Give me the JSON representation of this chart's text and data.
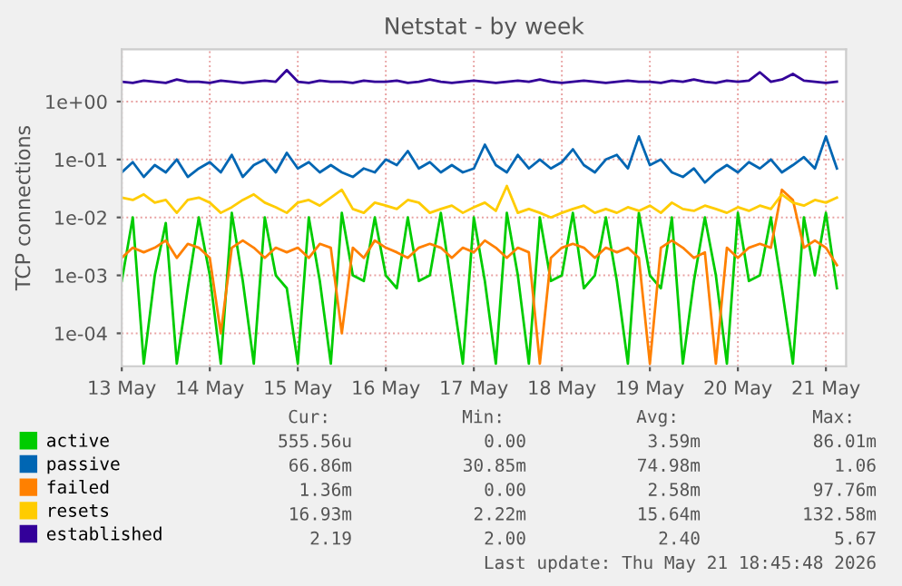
{
  "chart_data": {
    "type": "line",
    "title": "Netstat - by week",
    "ylabel": "TCP connections",
    "x": [
      "2026-05-13T00:00",
      "2026-05-13T03:00",
      "2026-05-13T06:00",
      "2026-05-13T09:00",
      "2026-05-13T12:00",
      "2026-05-13T15:00",
      "2026-05-13T18:00",
      "2026-05-13T21:00",
      "2026-05-14T00:00",
      "2026-05-14T03:00",
      "2026-05-14T06:00",
      "2026-05-14T09:00",
      "2026-05-14T12:00",
      "2026-05-14T15:00",
      "2026-05-14T18:00",
      "2026-05-14T21:00",
      "2026-05-15T00:00",
      "2026-05-15T03:00",
      "2026-05-15T06:00",
      "2026-05-15T09:00",
      "2026-05-15T12:00",
      "2026-05-15T15:00",
      "2026-05-15T18:00",
      "2026-05-15T21:00",
      "2026-05-16T00:00",
      "2026-05-16T03:00",
      "2026-05-16T06:00",
      "2026-05-16T09:00",
      "2026-05-16T12:00",
      "2026-05-16T15:00",
      "2026-05-16T18:00",
      "2026-05-16T21:00",
      "2026-05-17T00:00",
      "2026-05-17T03:00",
      "2026-05-17T06:00",
      "2026-05-17T09:00",
      "2026-05-17T12:00",
      "2026-05-17T15:00",
      "2026-05-17T18:00",
      "2026-05-17T21:00",
      "2026-05-18T00:00",
      "2026-05-18T03:00",
      "2026-05-18T06:00",
      "2026-05-18T09:00",
      "2026-05-18T12:00",
      "2026-05-18T15:00",
      "2026-05-18T18:00",
      "2026-05-18T21:00",
      "2026-05-19T00:00",
      "2026-05-19T03:00",
      "2026-05-19T06:00",
      "2026-05-19T09:00",
      "2026-05-19T12:00",
      "2026-05-19T15:00",
      "2026-05-19T18:00",
      "2026-05-19T21:00",
      "2026-05-20T00:00",
      "2026-05-20T03:00",
      "2026-05-20T06:00",
      "2026-05-20T09:00",
      "2026-05-20T12:00",
      "2026-05-20T15:00",
      "2026-05-20T18:00",
      "2026-05-20T21:00",
      "2026-05-21T00:00",
      "2026-05-21T03:00"
    ],
    "series": [
      {
        "name": "active",
        "color": "#00cc00",
        "values": [
          0.0008,
          0.01,
          3e-05,
          0.001,
          0.008,
          3e-05,
          0.0006,
          0.01,
          0.001,
          3e-05,
          0.012,
          0.0008,
          3e-05,
          0.01,
          0.001,
          0.0006,
          3e-05,
          0.01,
          0.0008,
          3e-05,
          0.012,
          0.001,
          0.0008,
          0.01,
          0.001,
          0.0006,
          0.01,
          0.0008,
          0.001,
          0.012,
          0.0006,
          3e-05,
          0.01,
          0.0008,
          3e-05,
          0.012,
          0.001,
          3e-05,
          0.01,
          0.0008,
          0.001,
          0.012,
          0.0006,
          0.001,
          0.01,
          0.0008,
          3e-05,
          0.012,
          0.001,
          0.0006,
          0.01,
          3e-05,
          0.0008,
          0.01,
          0.001,
          3e-05,
          0.012,
          0.0008,
          0.001,
          0.01,
          0.0006,
          3e-05,
          0.01,
          0.001,
          0.012,
          0.0006
        ]
      },
      {
        "name": "passive",
        "color": "#0066b3",
        "values": [
          0.06,
          0.09,
          0.05,
          0.08,
          0.06,
          0.1,
          0.05,
          0.07,
          0.09,
          0.06,
          0.12,
          0.05,
          0.08,
          0.1,
          0.06,
          0.13,
          0.07,
          0.09,
          0.06,
          0.08,
          0.06,
          0.05,
          0.07,
          0.06,
          0.1,
          0.08,
          0.14,
          0.07,
          0.09,
          0.06,
          0.08,
          0.06,
          0.07,
          0.18,
          0.08,
          0.06,
          0.12,
          0.07,
          0.1,
          0.07,
          0.09,
          0.15,
          0.08,
          0.06,
          0.1,
          0.12,
          0.07,
          0.25,
          0.08,
          0.1,
          0.06,
          0.05,
          0.07,
          0.04,
          0.06,
          0.08,
          0.06,
          0.09,
          0.07,
          0.1,
          0.06,
          0.08,
          0.11,
          0.07,
          0.25,
          0.07
        ]
      },
      {
        "name": "failed",
        "color": "#ff8000",
        "values": [
          0.002,
          0.003,
          0.0025,
          0.003,
          0.004,
          0.002,
          0.0035,
          0.003,
          0.002,
          0.0001,
          0.003,
          0.004,
          0.003,
          0.002,
          0.003,
          0.0025,
          0.003,
          0.002,
          0.0035,
          0.003,
          0.0001,
          0.003,
          0.002,
          0.004,
          0.003,
          0.0025,
          0.002,
          0.003,
          0.0035,
          0.003,
          0.002,
          0.003,
          0.0025,
          0.004,
          0.003,
          0.002,
          0.003,
          0.0025,
          3e-05,
          0.002,
          0.003,
          0.0035,
          0.003,
          0.002,
          0.003,
          0.0025,
          0.003,
          0.002,
          3e-05,
          0.003,
          0.004,
          0.003,
          0.002,
          0.0025,
          3e-05,
          0.003,
          0.002,
          0.003,
          0.0035,
          0.003,
          0.03,
          0.02,
          0.003,
          0.004,
          0.003,
          0.0015
        ]
      },
      {
        "name": "resets",
        "color": "#ffcc00",
        "values": [
          0.022,
          0.02,
          0.025,
          0.018,
          0.02,
          0.012,
          0.02,
          0.022,
          0.018,
          0.012,
          0.015,
          0.02,
          0.025,
          0.018,
          0.015,
          0.012,
          0.018,
          0.02,
          0.016,
          0.022,
          0.03,
          0.014,
          0.012,
          0.018,
          0.016,
          0.014,
          0.02,
          0.018,
          0.012,
          0.014,
          0.016,
          0.012,
          0.015,
          0.018,
          0.013,
          0.035,
          0.012,
          0.014,
          0.012,
          0.01,
          0.012,
          0.014,
          0.016,
          0.012,
          0.014,
          0.012,
          0.015,
          0.013,
          0.016,
          0.012,
          0.018,
          0.014,
          0.013,
          0.016,
          0.014,
          0.012,
          0.015,
          0.013,
          0.016,
          0.014,
          0.025,
          0.018,
          0.016,
          0.02,
          0.018,
          0.022
        ]
      },
      {
        "name": "established",
        "color": "#330099",
        "values": [
          2.2,
          2.1,
          2.3,
          2.2,
          2.1,
          2.4,
          2.2,
          2.2,
          2.1,
          2.3,
          2.2,
          2.1,
          2.2,
          2.3,
          2.2,
          3.5,
          2.2,
          2.1,
          2.3,
          2.2,
          2.2,
          2.1,
          2.3,
          2.2,
          2.2,
          2.3,
          2.1,
          2.2,
          2.4,
          2.2,
          2.1,
          2.2,
          2.3,
          2.2,
          2.1,
          2.2,
          2.3,
          2.2,
          2.4,
          2.2,
          2.1,
          2.2,
          2.3,
          2.2,
          2.1,
          2.2,
          2.3,
          2.2,
          2.2,
          2.1,
          2.3,
          2.2,
          2.4,
          2.2,
          2.1,
          2.3,
          2.2,
          2.3,
          3.2,
          2.2,
          2.4,
          3.0,
          2.3,
          2.2,
          2.1,
          2.2
        ]
      }
    ],
    "log": "y",
    "ylim": [
      2.7e-05,
      8
    ],
    "yticks": [
      {
        "value": 0.0001,
        "label": "1e-04"
      },
      {
        "value": 0.001,
        "label": "1e-03"
      },
      {
        "value": 0.01,
        "label": "1e-02"
      },
      {
        "value": 0.1,
        "label": "1e-01"
      },
      {
        "value": 1,
        "label": "1e+00"
      }
    ],
    "xlim": [
      "2026-05-13T00:00",
      "2026-05-21T05:30"
    ],
    "xticks": [
      {
        "value": "2026-05-13",
        "label": "13 May"
      },
      {
        "value": "2026-05-14",
        "label": "14 May"
      },
      {
        "value": "2026-05-15",
        "label": "15 May"
      },
      {
        "value": "2026-05-16",
        "label": "16 May"
      },
      {
        "value": "2026-05-17",
        "label": "17 May"
      },
      {
        "value": "2026-05-18",
        "label": "18 May"
      },
      {
        "value": "2026-05-19",
        "label": "19 May"
      },
      {
        "value": "2026-05-20",
        "label": "20 May"
      },
      {
        "value": "2026-05-21",
        "label": "21 May"
      }
    ],
    "grid": true,
    "legend": "bottom",
    "marker": "none",
    "line_style": "solid",
    "annotations": [
      "Cur:",
      "Min:",
      "Avg:",
      "Max:",
      "555.56u",
      "0.00",
      "3.59m",
      "86.01m",
      "66.86m",
      "30.85m",
      "74.98m",
      "1.06",
      "1.36m",
      "0.00",
      "2.58m",
      "97.76m",
      "16.93m",
      "2.22m",
      "15.64m",
      "132.58m",
      "2.19",
      "2.00",
      "2.40",
      "5.67",
      "Last update: Thu May 21 18:45:48 2026"
    ]
  }
}
